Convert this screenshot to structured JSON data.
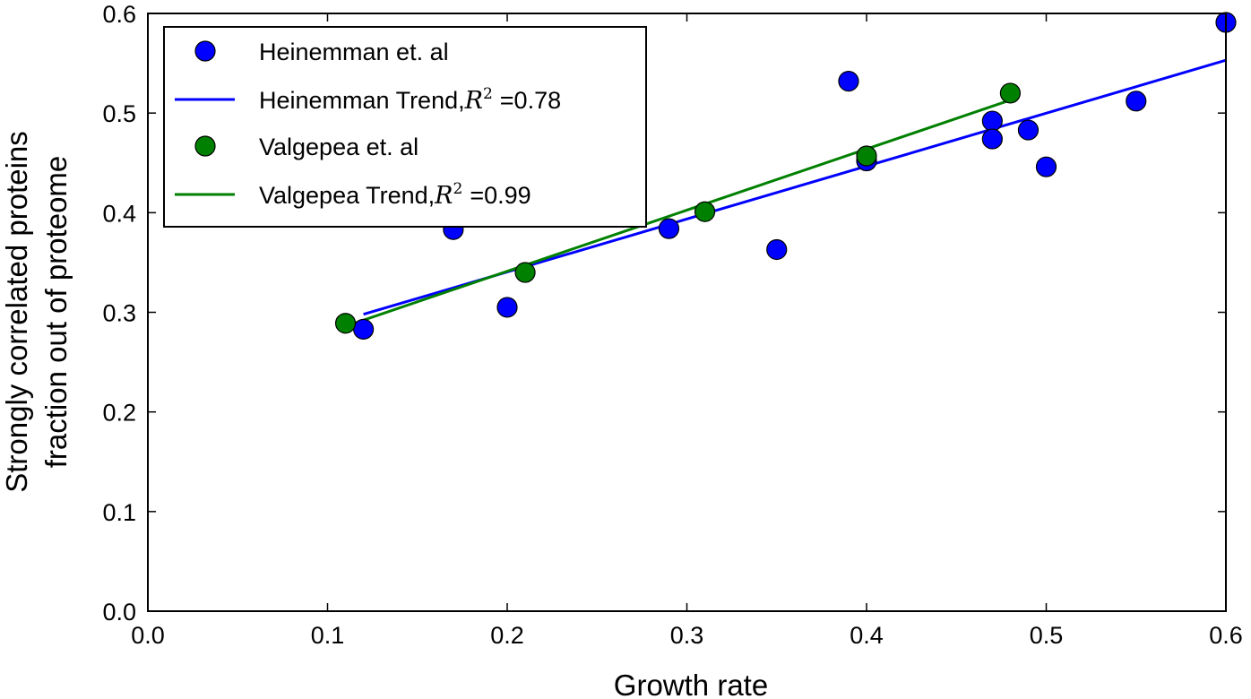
{
  "chart_data": {
    "type": "scatter",
    "xlabel": "Growth rate",
    "ylabel_lines": [
      "Strongly correlated proteins",
      "fraction out of proteome"
    ],
    "xlim": [
      0.0,
      0.6
    ],
    "ylim": [
      0.0,
      0.6
    ],
    "x_ticks": [
      0.0,
      0.1,
      0.2,
      0.3,
      0.4,
      0.5,
      0.6
    ],
    "y_ticks": [
      0.0,
      0.1,
      0.2,
      0.3,
      0.4,
      0.5,
      0.6
    ],
    "x_tick_labels": [
      "0.0",
      "0.1",
      "0.2",
      "0.3",
      "0.4",
      "0.5",
      "0.6"
    ],
    "y_tick_labels": [
      "0.0",
      "0.1",
      "0.2",
      "0.3",
      "0.4",
      "0.5",
      "0.6"
    ],
    "grid": false,
    "legend_position": "top-left",
    "series": [
      {
        "name": "Heinemman et. al",
        "kind": "scatter",
        "color": "#0000ff",
        "points": [
          [
            0.12,
            0.283
          ],
          [
            0.17,
            0.383
          ],
          [
            0.2,
            0.305
          ],
          [
            0.29,
            0.384
          ],
          [
            0.35,
            0.363
          ],
          [
            0.39,
            0.532
          ],
          [
            0.4,
            0.452
          ],
          [
            0.47,
            0.492
          ],
          [
            0.47,
            0.474
          ],
          [
            0.49,
            0.483
          ],
          [
            0.5,
            0.446
          ],
          [
            0.55,
            0.512
          ],
          [
            0.6,
            0.591
          ]
        ]
      },
      {
        "name": "Valgepea et. al",
        "kind": "scatter",
        "color": "#008000",
        "points": [
          [
            0.11,
            0.289
          ],
          [
            0.21,
            0.34
          ],
          [
            0.31,
            0.401
          ],
          [
            0.4,
            0.457
          ],
          [
            0.48,
            0.52
          ]
        ]
      }
    ],
    "trend_lines": [
      {
        "name_prefix": "Heinemman Trend,",
        "r2_value": "=0.78",
        "color": "#0000ff",
        "from": [
          0.12,
          0.298
        ],
        "to": [
          0.6,
          0.553
        ]
      },
      {
        "name_prefix": "Valgepea Trend,",
        "r2_value": "=0.99",
        "color": "#008000",
        "from": [
          0.11,
          0.286
        ],
        "to": [
          0.48,
          0.513
        ]
      }
    ],
    "r2_symbol": "R",
    "r2_exponent": "2"
  }
}
